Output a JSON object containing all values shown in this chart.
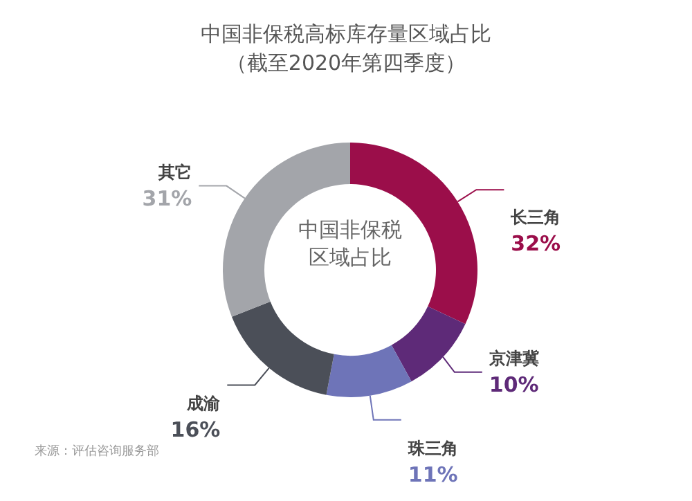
{
  "chart_data": {
    "type": "donut",
    "title": "中国非保税高标库存量区域占比",
    "subtitle": "（截至2020年第四季度）",
    "categories": [
      "长三角",
      "京津冀",
      "珠三角",
      "成渝",
      "其它"
    ],
    "values": [
      32,
      10,
      11,
      16,
      31
    ],
    "value_labels": [
      "32%",
      "10%",
      "11%",
      "16%",
      "31%"
    ],
    "colors": [
      "#9b0e4a",
      "#5e2a78",
      "#6e74b8",
      "#4b4f58",
      "#a3a5aa"
    ],
    "annotations": [
      "中国非保税",
      "区域占比",
      "来源：评估咨询服务部"
    ],
    "legend": false
  }
}
